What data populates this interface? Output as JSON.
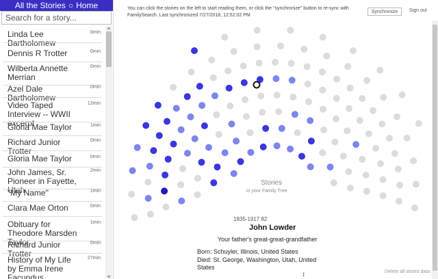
{
  "sidebar": {
    "all_stories": "All the Stories",
    "separator": "○",
    "home": "Home",
    "search_placeholder": "Search for a story...",
    "items": [
      {
        "title": "Linda Lee Bartholomew",
        "len": "0min"
      },
      {
        "title": "Dennis R Trotter",
        "len": "0min"
      },
      {
        "title": "Wilberta Annette Merrian",
        "len": "0min"
      },
      {
        "title": "Azel Dale Bartholomew",
        "len": "0min"
      },
      {
        "title": "Video Taped Interview -- WWII excerpt",
        "len": "12min"
      },
      {
        "title": "Gloria Mae Taylor",
        "len": "1min"
      },
      {
        "title": "Richard Junior Trotter",
        "len": "0min"
      },
      {
        "title": "Gloria Mae Taylor",
        "len": "0min"
      },
      {
        "title": "John James, Sr. Pioneer in Fayette, Utah",
        "len": "2min"
      },
      {
        "title": "\"My Name\"",
        "len": "1min"
      },
      {
        "title": "Clara Mae Orton",
        "len": "0min"
      },
      {
        "title": "Obituary for Theodore Marsden Taylor",
        "len": "1min"
      },
      {
        "title": "Richard Junior Trotter",
        "len": "0min"
      },
      {
        "title": "History of My Life by Emma Irene Facundus",
        "len": "27min"
      }
    ]
  },
  "header": {
    "info_text": "You can click the stories on the left to start reading them, or click the \"synchronize\" button to re-sync with FamilySearch. Last synchronized 7/27/2018, 12:52:02 PM",
    "sync_label": "Synchronize",
    "signout_label": "Sign out"
  },
  "chart_center": {
    "title": "Stories",
    "subtitle": "in your Family Tree"
  },
  "person": {
    "dates": "1835-1917  82",
    "name": "John Lowder",
    "relation": "Your father's great-great-grandfather",
    "born": "Born: Schuyler, Illinois, United States",
    "died": "Died: St. George, Washington, Utah, United States"
  },
  "footer": {
    "delete_label": "Delete all stored data"
  },
  "colors": {
    "accent": "#3a2ec4",
    "dot_gray": "#dcdcdc",
    "dot_light_blue": "#7b86ee",
    "dot_blue": "#3b36e0",
    "dot_dark": "#221ab8"
  }
}
